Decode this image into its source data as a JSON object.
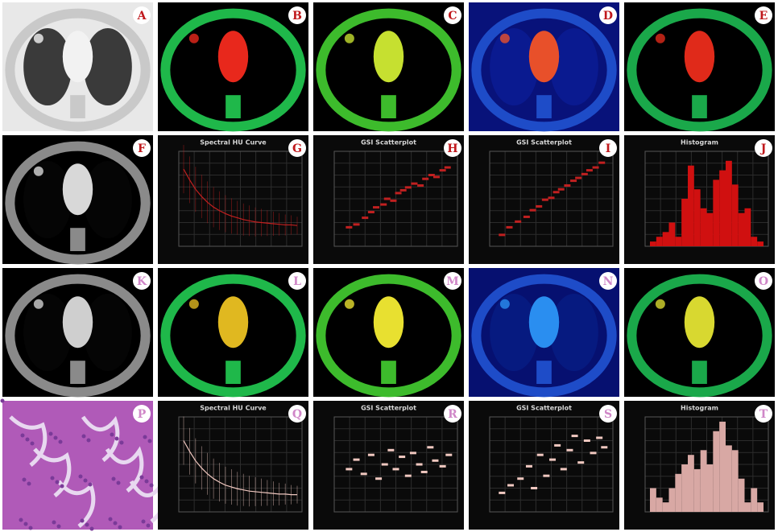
{
  "panels": [
    {
      "label": "A",
      "type": "ct",
      "palette": [
        "#e8e8e8",
        "#c9c9c9",
        "#3a3a3a",
        "#f2f2f2"
      ],
      "letter_color": "#c0181c"
    },
    {
      "label": "B",
      "type": "ct",
      "palette": [
        "#000000",
        "#1fb84a",
        "#000000",
        "#e8281c"
      ],
      "letter_color": "#c0181c"
    },
    {
      "label": "C",
      "type": "ct",
      "palette": [
        "#000000",
        "#3dbb2c",
        "#000000",
        "#c6e030"
      ],
      "letter_color": "#c0181c"
    },
    {
      "label": "D",
      "type": "ct",
      "palette": [
        "#08127a",
        "#1e4cc8",
        "#0a1a90",
        "#e8502a"
      ],
      "letter_color": "#c0181c"
    },
    {
      "label": "E",
      "type": "ct",
      "palette": [
        "#000000",
        "#1aa84a",
        "#000000",
        "#e02a1a"
      ],
      "letter_color": "#c0181c"
    },
    {
      "label": "F",
      "type": "ct",
      "palette": [
        "#000000",
        "#8a8a8a",
        "#050505",
        "#d8d8d8"
      ],
      "letter_color": "#c0181c"
    },
    {
      "label": "G",
      "type": "line",
      "title": "Spectral HU Curve",
      "color": "#c02020",
      "ylim": [
        0,
        160
      ],
      "values": [
        130,
        112,
        96,
        84,
        74,
        66,
        60,
        55,
        51,
        48,
        45,
        43,
        41,
        40,
        39,
        38,
        37,
        36,
        36,
        35
      ],
      "letter_color": "#c0181c"
    },
    {
      "label": "H",
      "type": "scatter",
      "title": "GSI Scatterplot",
      "color": "#c02020",
      "xlim": [
        0,
        10
      ],
      "ylim": [
        0,
        10
      ],
      "x": [
        1.2,
        1.8,
        2.5,
        3,
        3.4,
        4,
        4.3,
        4.8,
        5.2,
        5.6,
        6,
        6.5,
        7,
        7.4,
        7.9,
        8.3,
        8.8,
        9.2
      ],
      "y": [
        2,
        2.3,
        3,
        3.6,
        4.1,
        4.4,
        5,
        4.8,
        5.6,
        5.9,
        6.2,
        6.6,
        6.4,
        7.1,
        7.5,
        7.3,
        8,
        8.3
      ],
      "letter_color": "#c0181c"
    },
    {
      "label": "I",
      "type": "scatter",
      "title": "GSI Scatterplot",
      "color": "#c02020",
      "xlim": [
        0,
        10
      ],
      "ylim": [
        0,
        10
      ],
      "x": [
        1,
        1.6,
        2.3,
        3,
        3.5,
        4,
        4.5,
        5,
        5.4,
        5.8,
        6.3,
        6.8,
        7.2,
        7.7,
        8.1,
        8.6,
        9.1
      ],
      "y": [
        1.2,
        2,
        2.6,
        3.1,
        3.8,
        4.2,
        4.9,
        5.1,
        5.7,
        6,
        6.4,
        6.9,
        7.2,
        7.6,
        8,
        8.3,
        8.8
      ],
      "letter_color": "#c0181c"
    },
    {
      "label": "J",
      "type": "bar",
      "title": "Histogram",
      "color": "#d01010",
      "ylim": [
        0,
        10
      ],
      "values": [
        0.5,
        1,
        1.5,
        2.5,
        1,
        5,
        8.5,
        6,
        4,
        3.5,
        7,
        8,
        9,
        6.5,
        3.5,
        4,
        1,
        0.5
      ],
      "letter_color": "#c0181c"
    },
    {
      "label": "K",
      "type": "ct",
      "palette": [
        "#000000",
        "#8a8a8a",
        "#050505",
        "#cfcfcf"
      ],
      "letter_color": "#d087c8"
    },
    {
      "label": "L",
      "type": "ct",
      "palette": [
        "#000000",
        "#1fb84a",
        "#000000",
        "#e0b820"
      ],
      "letter_color": "#d087c8"
    },
    {
      "label": "M",
      "type": "ct",
      "palette": [
        "#000000",
        "#3dbb2c",
        "#000000",
        "#e8e030"
      ],
      "letter_color": "#d087c8"
    },
    {
      "label": "N",
      "type": "ct",
      "palette": [
        "#061070",
        "#1e4cc8",
        "#061a80",
        "#2a8ef0"
      ],
      "letter_color": "#d087c8"
    },
    {
      "label": "O",
      "type": "ct",
      "palette": [
        "#000000",
        "#1aa84a",
        "#000000",
        "#d8d830"
      ],
      "letter_color": "#d087c8"
    },
    {
      "label": "P",
      "type": "histology",
      "palette": [
        "#b05ab8",
        "#e8d8f0",
        "#7a3a98"
      ],
      "letter_color": "#d087c8"
    },
    {
      "label": "Q",
      "type": "line",
      "title": "Spectral HU Curve",
      "color": "#f0c8c0",
      "ylim": [
        0,
        160
      ],
      "values": [
        120,
        102,
        86,
        74,
        64,
        56,
        50,
        45,
        42,
        39,
        37,
        35,
        34,
        33,
        32,
        31,
        30,
        30,
        29,
        29
      ],
      "letter_color": "#d087c8"
    },
    {
      "label": "R",
      "type": "scatter",
      "title": "GSI Scatterplot",
      "color": "#f0c8c0",
      "xlim": [
        0,
        10
      ],
      "ylim": [
        0,
        10
      ],
      "x": [
        1.2,
        1.8,
        2.4,
        3,
        3.6,
        4.1,
        4.6,
        5,
        5.5,
        6,
        6.4,
        6.9,
        7.3,
        7.8,
        8.2,
        8.8,
        9.3
      ],
      "y": [
        4.5,
        5.5,
        4,
        6,
        3.5,
        5,
        6.5,
        4.5,
        5.8,
        3.8,
        6.2,
        5,
        4.2,
        6.8,
        5.4,
        4.8,
        6
      ],
      "letter_color": "#d087c8"
    },
    {
      "label": "S",
      "type": "scatter",
      "title": "GSI Scatterplot",
      "color": "#f0c8c0",
      "xlim": [
        0,
        10
      ],
      "ylim": [
        0,
        10
      ],
      "x": [
        1,
        1.7,
        2.5,
        3.2,
        3.6,
        4.1,
        4.6,
        5.1,
        5.5,
        6,
        6.5,
        6.9,
        7.4,
        7.9,
        8.4,
        8.9,
        9.3
      ],
      "y": [
        2,
        2.8,
        3.5,
        4.8,
        2.5,
        6,
        3.8,
        5.5,
        7,
        4.5,
        6.5,
        8,
        5.2,
        7.5,
        6.2,
        7.8,
        6.8
      ],
      "letter_color": "#d087c8"
    },
    {
      "label": "T",
      "type": "bar",
      "title": "Histogram",
      "color": "#d8a8a4",
      "ylim": [
        0,
        10
      ],
      "values": [
        2.5,
        1.5,
        1,
        2.5,
        4,
        5,
        6,
        4.5,
        6.5,
        5,
        8.5,
        9.5,
        7,
        6.5,
        3.5,
        1,
        2.5,
        1
      ],
      "letter_color": "#d087c8"
    }
  ]
}
